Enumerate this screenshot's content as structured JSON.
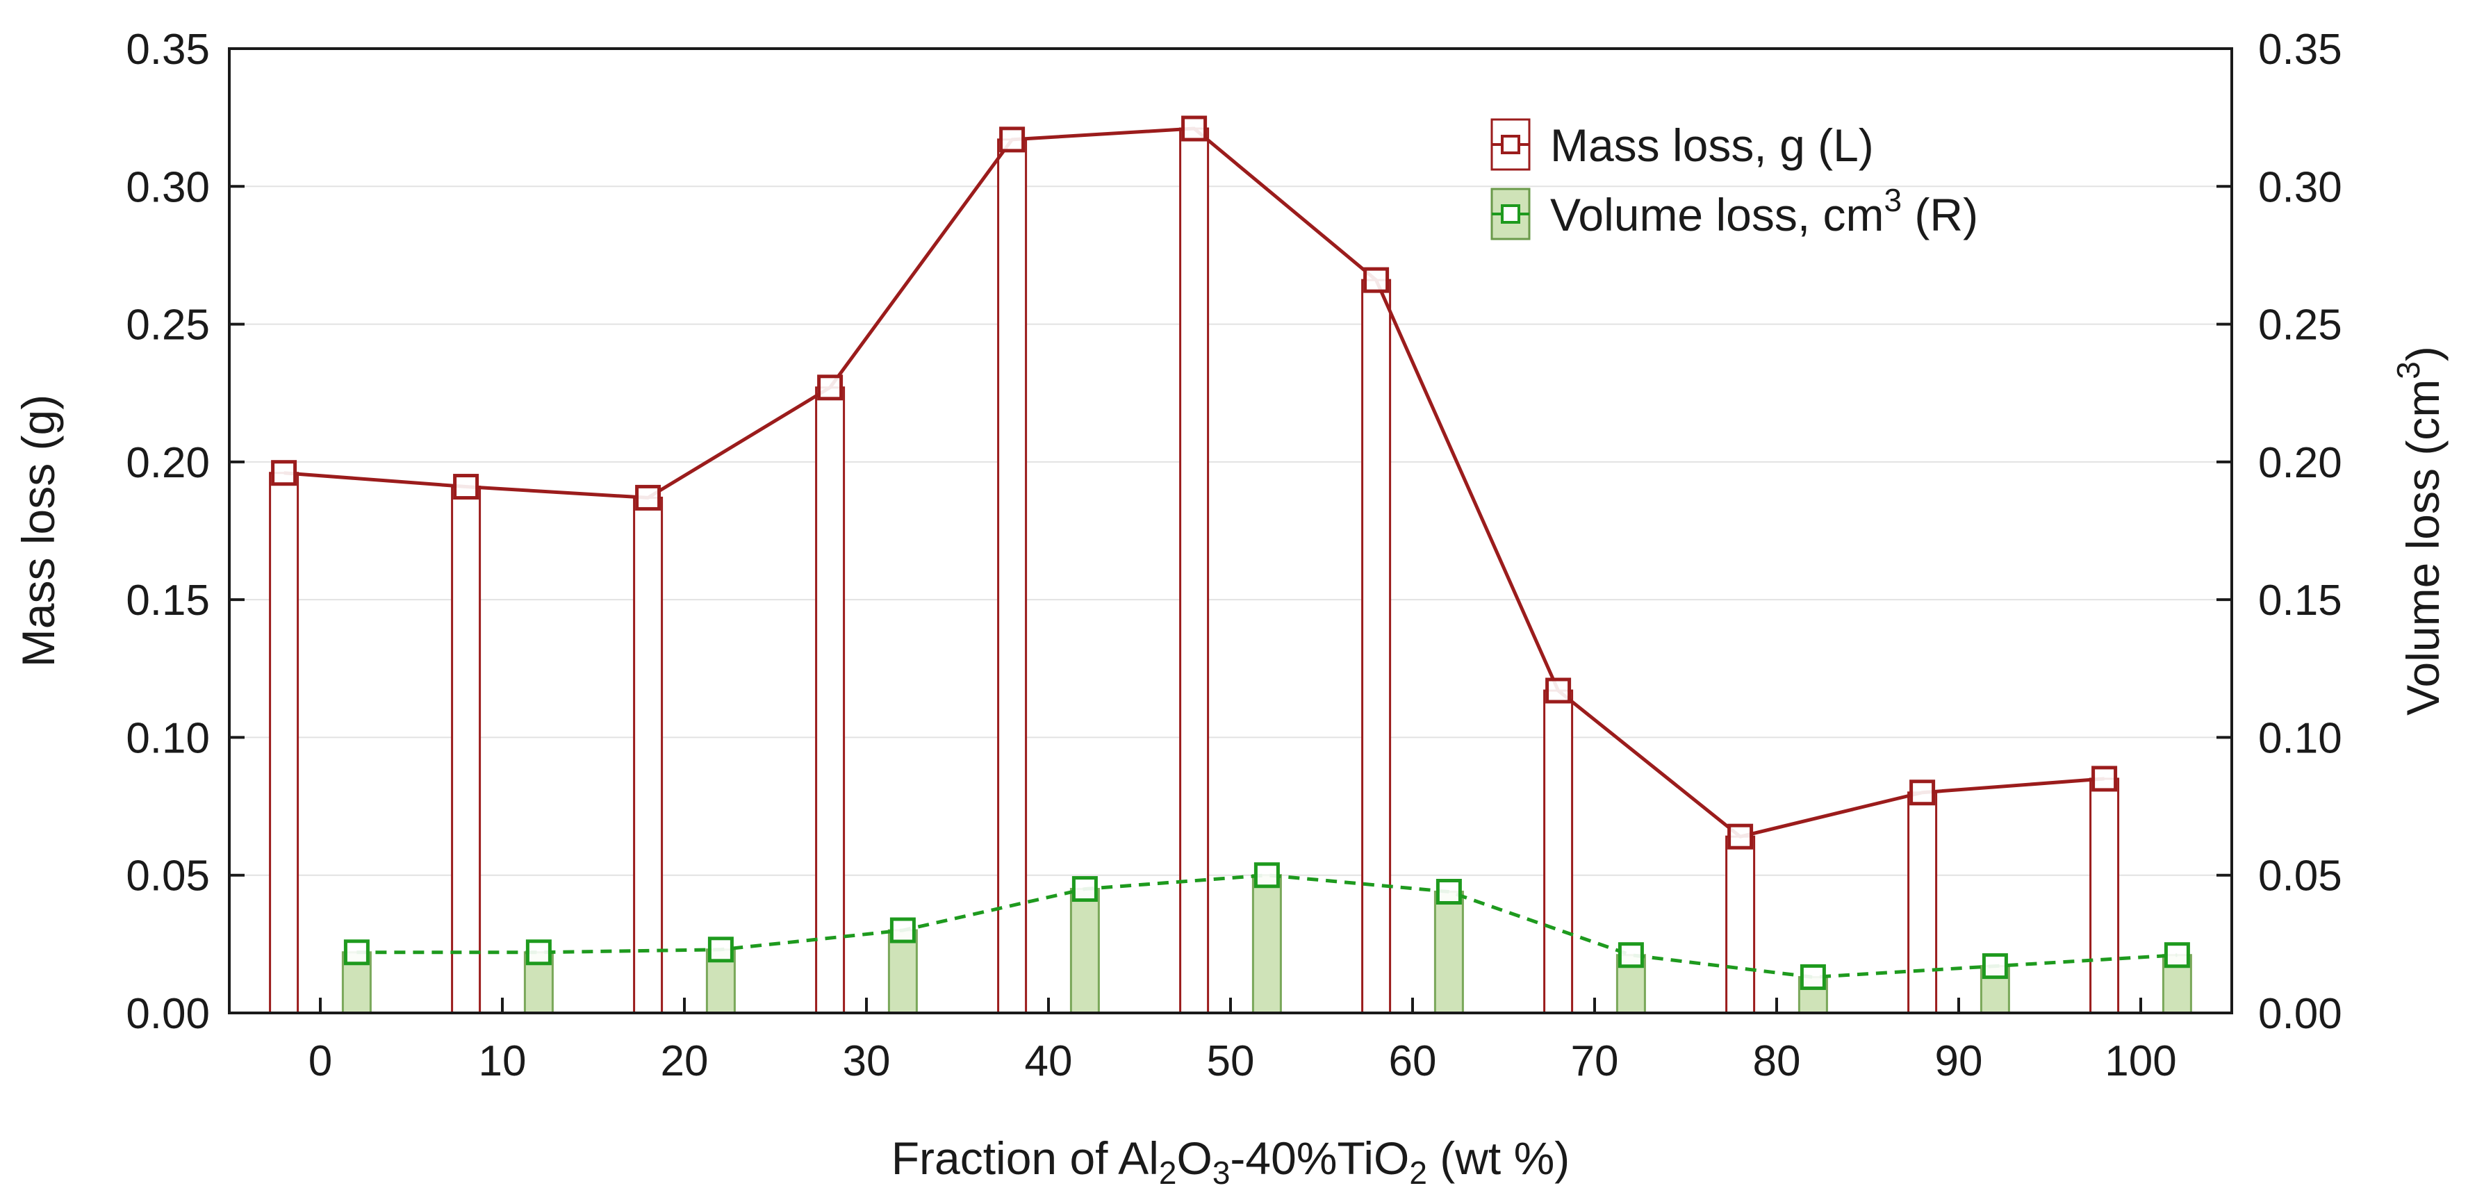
{
  "chart_data": {
    "type": "bar+line",
    "x_values": [
      0,
      10,
      20,
      30,
      40,
      50,
      60,
      70,
      80,
      90,
      100
    ],
    "x_tick_labels": [
      "0",
      "10",
      "20",
      "30",
      "40",
      "50",
      "60",
      "70",
      "80",
      "90",
      "100"
    ],
    "xlim": [
      -5,
      105
    ],
    "y_left": {
      "label": "Mass loss (g)",
      "ylim": [
        0,
        0.35
      ],
      "ticks": [
        "0.00",
        "0.05",
        "0.10",
        "0.15",
        "0.20",
        "0.25",
        "0.30",
        "0.35"
      ]
    },
    "y_right": {
      "label_main": "Volume loss (cm",
      "label_sup": "3",
      "label_end": ")",
      "ylim": [
        0,
        0.35
      ],
      "ticks": [
        "0.00",
        "0.05",
        "0.10",
        "0.15",
        "0.20",
        "0.25",
        "0.30",
        "0.35"
      ]
    },
    "xlabel": {
      "part1": "Fraction of Al",
      "sub1": "2",
      "part2": "O",
      "sub2": "3",
      "part3": "-40%TiO",
      "sub3": "2",
      "part4": " (wt %)"
    },
    "series": [
      {
        "name": "Mass loss, g (L)",
        "legend_main": "Mass loss, g (L)",
        "axis": "left",
        "color": "#9b1c1c",
        "bar_fill": "#ffffff",
        "line_style": "solid",
        "bar_offset": -2,
        "values": [
          0.196,
          0.191,
          0.187,
          0.227,
          0.317,
          0.321,
          0.266,
          0.117,
          0.064,
          0.08,
          0.085
        ]
      },
      {
        "name": "Volume loss, cm3 (R)",
        "legend_main": "Volume loss, cm",
        "legend_sup": "3",
        "legend_end": " (R)",
        "axis": "right",
        "color": "#1e9a1e",
        "bar_fill": "#cfe3b8",
        "line_style": "dashed",
        "bar_offset": 2,
        "values": [
          0.022,
          0.022,
          0.023,
          0.03,
          0.045,
          0.05,
          0.044,
          0.021,
          0.013,
          0.017,
          0.021
        ]
      }
    ],
    "grid": "horizontal",
    "legend_position": "top-right"
  }
}
